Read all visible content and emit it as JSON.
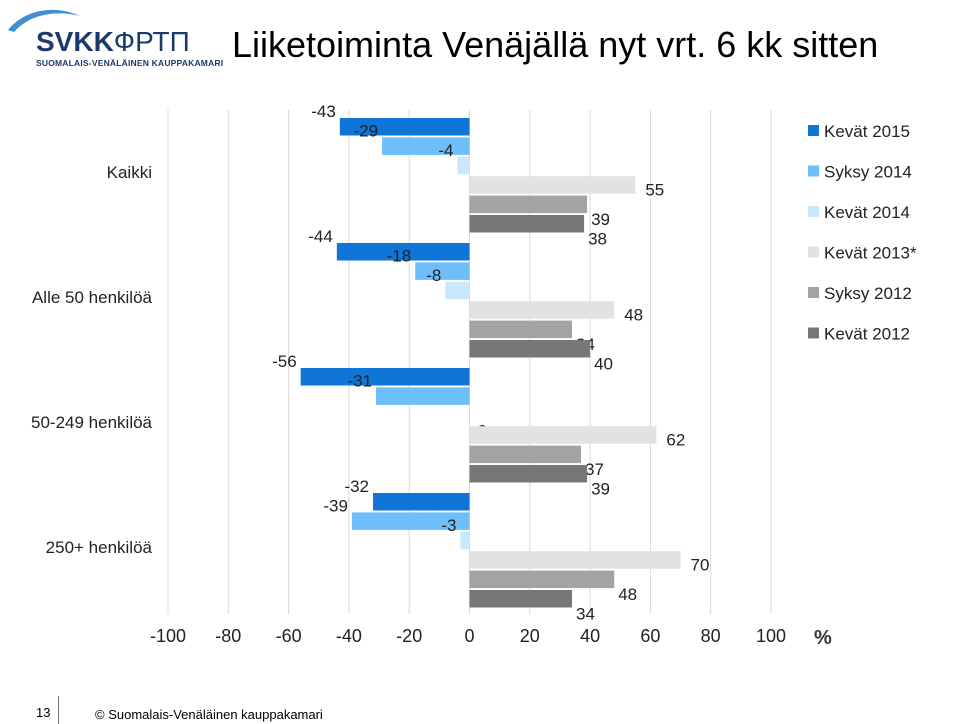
{
  "logo": {
    "name_latin": "SVKK",
    "name_cyrillic": "ФРТП",
    "subtitle": "SUOMALAIS-VENÄLÄINEN KAUPPAKAMARI"
  },
  "title": "Liiketoiminta Venäjällä nyt vrt. 6 kk sitten",
  "chart_data": {
    "type": "bar",
    "orientation": "horizontal",
    "categories": [
      "Kaikki",
      "Alle 50 henkilöä",
      "50-249 henkilöä",
      "250+ henkilöä"
    ],
    "series": [
      {
        "name": "Kevät 2015",
        "color": "#0f75d6",
        "values": [
          -43,
          -44,
          -56,
          -32
        ]
      },
      {
        "name": "Syksy 2014",
        "color": "#6ebef9",
        "values": [
          -29,
          -18,
          -31,
          -39
        ]
      },
      {
        "name": "Kevät 2014",
        "color": "#c9e8fb",
        "values": [
          -4,
          -8,
          0,
          -3
        ]
      },
      {
        "name": "Kevät 2013*",
        "color": "#e2e2e2",
        "values": [
          55,
          48,
          62,
          70
        ]
      },
      {
        "name": "Syksy 2012",
        "color": "#a3a3a3",
        "values": [
          39,
          34,
          37,
          48
        ]
      },
      {
        "name": "Kevät 2012",
        "color": "#777777",
        "values": [
          38,
          40,
          39,
          34
        ]
      }
    ],
    "xlim": [
      -100,
      100
    ],
    "xticks": [
      -100,
      -80,
      -60,
      -40,
      -20,
      0,
      20,
      40,
      60,
      80,
      100
    ],
    "x_unit_label": "%",
    "grid": true,
    "legend_position": "right"
  },
  "footer": {
    "page_number": "13",
    "copyright": "© Suomalais-Venäläinen kauppakamari"
  }
}
